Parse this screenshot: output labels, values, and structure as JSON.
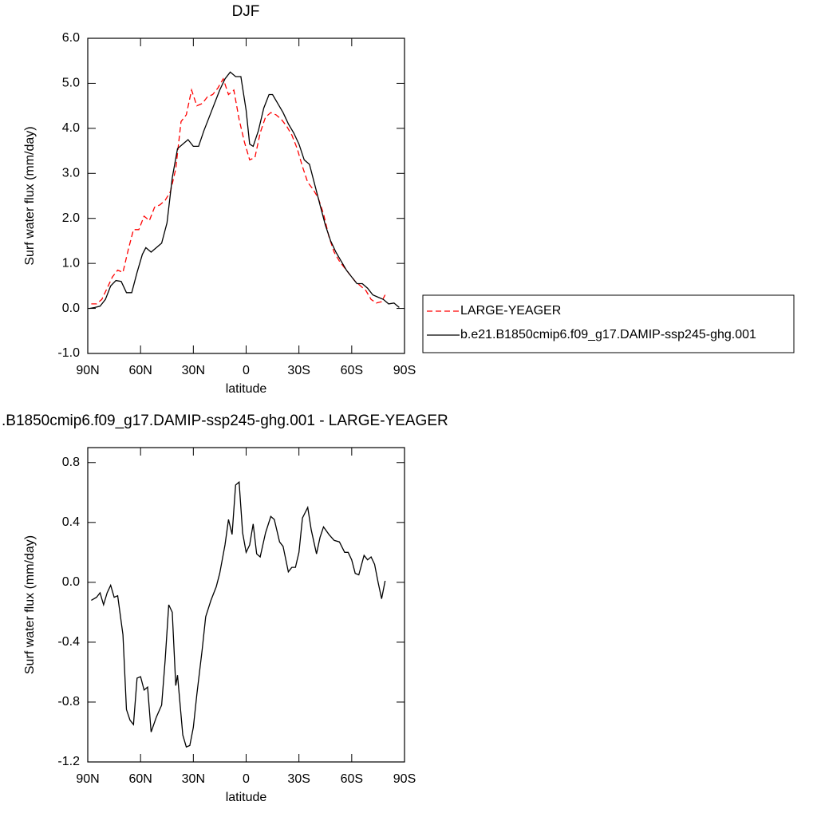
{
  "chart_data": [
    {
      "type": "line",
      "title": "DJF",
      "xlabel": "latitude",
      "ylabel": "Surf water flux (mm/day)",
      "xlim": [
        90,
        -90
      ],
      "xticks": [
        {
          "value": 90,
          "label": "90N"
        },
        {
          "value": 60,
          "label": "60N"
        },
        {
          "value": 30,
          "label": "30N"
        },
        0,
        {
          "value": -30,
          "label": "30S"
        },
        {
          "value": -60,
          "label": "60S"
        },
        {
          "value": -90,
          "label": "90S"
        }
      ],
      "ylim": [
        -1,
        6
      ],
      "yticks": [
        {
          "value": -1,
          "label": "-1.0"
        },
        {
          "value": 0,
          "label": "0.0"
        },
        {
          "value": 1,
          "label": "1.0"
        },
        {
          "value": 2,
          "label": "2.0"
        },
        {
          "value": 3,
          "label": "3.0"
        },
        {
          "value": 4,
          "label": "4.0"
        },
        {
          "value": 5,
          "label": "5.0"
        },
        {
          "value": 6,
          "label": "6.0"
        }
      ],
      "legend": "right",
      "series": [
        {
          "name": "LARGE-YEAGER",
          "color": "#ff0000",
          "style": "dashed",
          "x": [
            88,
            85,
            82,
            79,
            76,
            73,
            70,
            67,
            64,
            61,
            58,
            55,
            52,
            49,
            46,
            43,
            40,
            37,
            34,
            31,
            28,
            25,
            22,
            19,
            16,
            13,
            10,
            7,
            4,
            1,
            -2,
            -5,
            -8,
            -11,
            -14,
            -17,
            -20,
            -23,
            -26,
            -29,
            -32,
            -35,
            -38,
            -41,
            -44,
            -47,
            -50,
            -53,
            -56,
            -59,
            -62,
            -65,
            -68,
            -71,
            -74,
            -77,
            -79
          ],
          "values": [
            0.1,
            0.1,
            0.2,
            0.45,
            0.7,
            0.85,
            0.8,
            1.3,
            1.75,
            1.75,
            2.05,
            1.95,
            2.25,
            2.3,
            2.4,
            2.6,
            3.1,
            4.15,
            4.3,
            4.85,
            4.5,
            4.55,
            4.7,
            4.75,
            4.9,
            5.1,
            4.75,
            4.85,
            4.2,
            3.7,
            3.3,
            3.35,
            3.9,
            4.25,
            4.35,
            4.3,
            4.2,
            4.05,
            3.85,
            3.55,
            3.15,
            2.8,
            2.65,
            2.45,
            2.1,
            1.6,
            1.25,
            1.05,
            0.9,
            0.75,
            0.6,
            0.5,
            0.4,
            0.2,
            0.12,
            0.15,
            0.3
          ]
        },
        {
          "name": "b.e21.B1850cmip6.f09_g17.DAMIP-ssp245-ghg.001",
          "color": "#000000",
          "style": "solid",
          "x": [
            89,
            86,
            83,
            80,
            77,
            74,
            71,
            68,
            65,
            62,
            59,
            57,
            54,
            51,
            48,
            45,
            42,
            39,
            36,
            33,
            30,
            27,
            24,
            21,
            18,
            15,
            12,
            9,
            6,
            3,
            0,
            -2,
            -4,
            -7,
            -10,
            -13,
            -15,
            -18,
            -21,
            -24,
            -27,
            -30,
            -33,
            -36,
            -39,
            -42,
            -45,
            -48,
            -51,
            -54,
            -57,
            -60,
            -63,
            -66,
            -69,
            -72,
            -75,
            -78,
            -81,
            -84,
            -87
          ],
          "values": [
            0.0,
            0.02,
            0.05,
            0.2,
            0.5,
            0.62,
            0.6,
            0.35,
            0.35,
            0.8,
            1.2,
            1.35,
            1.25,
            1.35,
            1.45,
            1.9,
            2.9,
            3.55,
            3.65,
            3.75,
            3.6,
            3.6,
            3.95,
            4.25,
            4.55,
            4.85,
            5.1,
            5.25,
            5.15,
            5.15,
            4.4,
            3.65,
            3.6,
            3.95,
            4.45,
            4.75,
            4.75,
            4.55,
            4.35,
            4.1,
            3.9,
            3.65,
            3.3,
            3.2,
            2.75,
            2.3,
            1.85,
            1.5,
            1.25,
            1.05,
            0.85,
            0.7,
            0.55,
            0.55,
            0.45,
            0.3,
            0.25,
            0.2,
            0.1,
            0.12,
            0.02
          ]
        }
      ]
    },
    {
      "type": "line",
      "title": ".B1850cmip6.f09_g17.DAMIP-ssp245-ghg.001 - LARGE-YEAGER",
      "xlabel": "latitude",
      "ylabel": "Surf water flux (mm/day)",
      "xlim": [
        90,
        -90
      ],
      "xticks": [
        {
          "value": 90,
          "label": "90N"
        },
        {
          "value": 60,
          "label": "60N"
        },
        {
          "value": 30,
          "label": "30N"
        },
        0,
        {
          "value": -30,
          "label": "30S"
        },
        {
          "value": -60,
          "label": "60S"
        },
        {
          "value": -90,
          "label": "90S"
        }
      ],
      "ylim": [
        -1.2,
        0.9
      ],
      "yticks": [
        -1.2,
        -0.8,
        -0.4,
        {
          "value": 0,
          "label": "0.0"
        },
        0.4,
        0.8
      ],
      "series": [
        {
          "color": "#000000",
          "style": "solid",
          "x": [
            88,
            85,
            83,
            81,
            79,
            77,
            75,
            73,
            70,
            68,
            66,
            64,
            62,
            60,
            58,
            56,
            54,
            51,
            48,
            46,
            44,
            42,
            40,
            39,
            36,
            34,
            32,
            30,
            28,
            25,
            23,
            20,
            17,
            15,
            12,
            10,
            8,
            6,
            4,
            2,
            0,
            -2,
            -4,
            -6,
            -8,
            -11,
            -14,
            -16,
            -19,
            -21,
            -24,
            -26,
            -28,
            -30,
            -32,
            -35,
            -37,
            -40,
            -42,
            -44,
            -47,
            -50,
            -53,
            -56,
            -58,
            -60,
            -62,
            -64,
            -67,
            -69,
            -71,
            -73,
            -75,
            -77,
            -79
          ],
          "values": [
            -0.12,
            -0.1,
            -0.07,
            -0.15,
            -0.07,
            -0.02,
            -0.1,
            -0.09,
            -0.35,
            -0.85,
            -0.92,
            -0.95,
            -0.64,
            -0.63,
            -0.72,
            -0.7,
            -1.0,
            -0.9,
            -0.82,
            -0.52,
            -0.15,
            -0.2,
            -0.69,
            -0.62,
            -1.02,
            -1.1,
            -1.09,
            -0.97,
            -0.75,
            -0.45,
            -0.23,
            -0.12,
            -0.03,
            0.06,
            0.25,
            0.42,
            0.32,
            0.65,
            0.67,
            0.33,
            0.2,
            0.25,
            0.39,
            0.19,
            0.17,
            0.33,
            0.44,
            0.42,
            0.27,
            0.24,
            0.07,
            0.1,
            0.1,
            0.2,
            0.43,
            0.5,
            0.35,
            0.19,
            0.3,
            0.37,
            0.32,
            0.28,
            0.27,
            0.2,
            0.2,
            0.15,
            0.06,
            0.05,
            0.18,
            0.15,
            0.17,
            0.12,
            0.0,
            -0.11,
            0.01
          ]
        }
      ]
    }
  ]
}
